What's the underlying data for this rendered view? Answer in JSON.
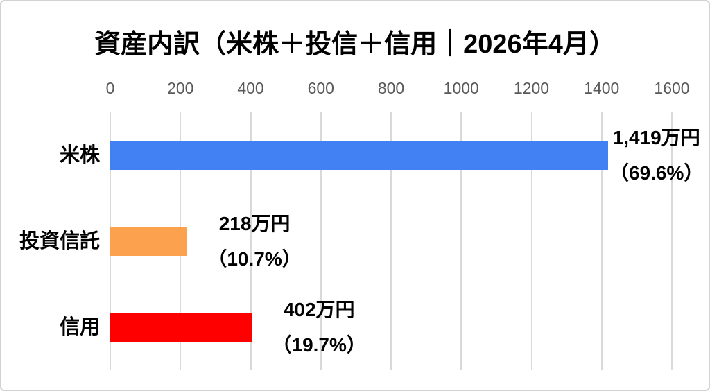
{
  "title": "資産内訳（米株＋投信＋信用｜2026年4月）",
  "chart_data": {
    "type": "bar",
    "orientation": "horizontal",
    "title": "資産内訳（米株＋投信＋信用｜2026年4月）",
    "categories": [
      "米株",
      "投資信託",
      "信用"
    ],
    "values": [
      1419,
      218,
      402
    ],
    "unit": "万円",
    "data_labels": [
      {
        "amount": "1,419万円",
        "percent": "（69.6%）"
      },
      {
        "amount": "218万円",
        "percent": "（10.7%）"
      },
      {
        "amount": "402万円",
        "percent": "（19.7%）"
      }
    ],
    "bar_colors": [
      "#4181F4",
      "#FCA24E",
      "#FF0000"
    ],
    "xlabel": "",
    "ylabel": "",
    "xlim": [
      0,
      1600
    ],
    "x_ticks": [
      "0",
      "200",
      "400",
      "600",
      "800",
      "1000",
      "1200",
      "1400",
      "1600"
    ],
    "grid": true,
    "gridline_color": "#D9D9D9",
    "tick_label_color": "#595959",
    "label_text_color": "#000000",
    "legend_position": "none"
  }
}
